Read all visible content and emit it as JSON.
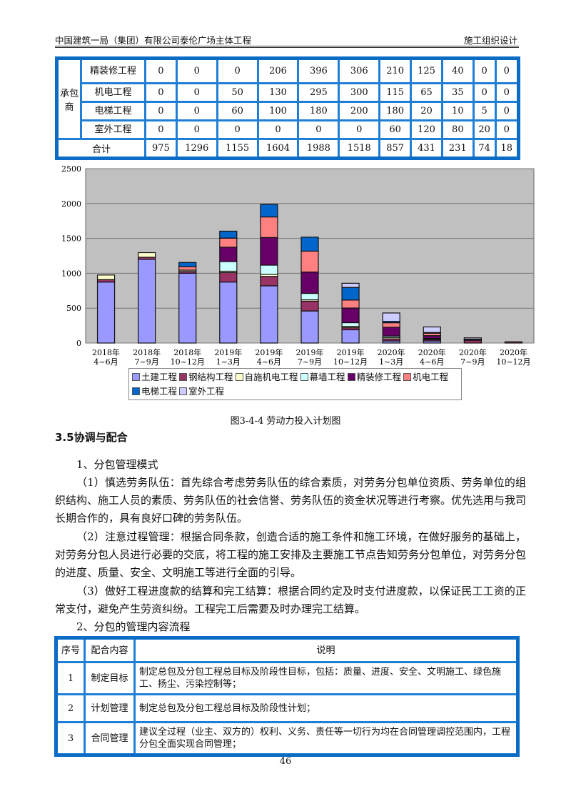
{
  "header": {
    "left": "中国建筑一局（集团）有限公司泰伦广场主体工程",
    "right": "施工组织设计"
  },
  "table1": {
    "group_label": "承包商",
    "rows": [
      {
        "label": "精装修工程",
        "values": [
          "0",
          "0",
          "0",
          "206",
          "396",
          "306",
          "210",
          "125",
          "40",
          "0",
          "0"
        ]
      },
      {
        "label": "机电工程",
        "values": [
          "0",
          "0",
          "50",
          "130",
          "295",
          "300",
          "115",
          "65",
          "35",
          "0",
          "0"
        ]
      },
      {
        "label": "电梯工程",
        "values": [
          "0",
          "0",
          "60",
          "100",
          "180",
          "200",
          "180",
          "20",
          "10",
          "5",
          "0"
        ]
      },
      {
        "label": "室外工程",
        "values": [
          "0",
          "0",
          "0",
          "0",
          "0",
          "0",
          "60",
          "120",
          "80",
          "20",
          "0"
        ]
      }
    ],
    "total_label": "合计",
    "totals": [
      "975",
      "1296",
      "1155",
      "1604",
      "1988",
      "1518",
      "857",
      "431",
      "231",
      "74",
      "18"
    ]
  },
  "chart_data": {
    "type": "bar",
    "stacked": true,
    "ylim": [
      0,
      2500
    ],
    "yticks": [
      0,
      500,
      1000,
      1500,
      2000,
      2500
    ],
    "grid": true,
    "legend": "bottom",
    "background": "#c0c0c0",
    "categories": [
      [
        "2018年",
        "4~6月"
      ],
      [
        "2018年",
        "7~9月"
      ],
      [
        "2018年",
        "10~12月"
      ],
      [
        "2019年",
        "1~3月"
      ],
      [
        "2019年",
        "4~6月"
      ],
      [
        "2019年",
        "7~9月"
      ],
      [
        "2019年",
        "10~12月"
      ],
      [
        "2020年",
        "1~3月"
      ],
      [
        "2020年",
        "4~6月"
      ],
      [
        "2020年",
        "7~9月"
      ],
      [
        "2020年",
        "10~12月"
      ]
    ],
    "series": [
      {
        "name": "土建工程",
        "color": "#9999ff",
        "values": [
          875,
          1200,
          1000,
          875,
          820,
          460,
          190,
          30,
          30,
          0,
          0
        ]
      },
      {
        "name": "钢结构工程",
        "color": "#993366",
        "values": [
          35,
          30,
          25,
          135,
          135,
          140,
          30,
          30,
          20,
          40,
          18
        ]
      },
      {
        "name": "自施机电工程",
        "color": "#ffffcc",
        "values": [
          65,
          66,
          20,
          20,
          30,
          20,
          20,
          20,
          10,
          9,
          0
        ]
      },
      {
        "name": "幕墙工程",
        "color": "#ccffff",
        "values": [
          0,
          0,
          0,
          138,
          132,
          92,
          52,
          21,
          6,
          0,
          0
        ]
      },
      {
        "name": "精装修工程",
        "color": "#660066",
        "values": [
          0,
          0,
          0,
          206,
          396,
          306,
          210,
          125,
          40,
          0,
          0
        ]
      },
      {
        "name": "机电工程",
        "color": "#ff8080",
        "values": [
          0,
          0,
          50,
          130,
          295,
          300,
          115,
          65,
          35,
          0,
          0
        ]
      },
      {
        "name": "电梯工程",
        "color": "#0066cc",
        "values": [
          0,
          0,
          60,
          100,
          180,
          200,
          180,
          20,
          10,
          5,
          0
        ]
      },
      {
        "name": "室外工程",
        "color": "#ccccff",
        "values": [
          0,
          0,
          0,
          0,
          0,
          0,
          60,
          120,
          80,
          20,
          0
        ]
      }
    ]
  },
  "caption": "图3-4-4 劳动力投入计划图",
  "section": {
    "heading": "3.5协调与配合",
    "paragraphs": [
      "1、分包管理模式",
      "（1）慎选劳务队伍：首先综合考虑劳务队伍的综合素质，对劳务分包单位资质、劳务单位的组织结构、施工人员的素质、劳务队伍的社会信誉、劳务队伍的资金状况等进行考察。优先选用与我司长期合作的，具有良好口碑的劳务队伍。",
      "（2）注意过程管理：根据合同条款，创造合适的施工条件和施工环境，在做好服务的基础上，对劳务分包人员进行必要的交底，将工程的施工安排及主要施工节点告知劳务分包单位，对劳务分包的进度、质量、安全、文明施工等进行全面的引导。",
      "（3）做好工程进度款的结算和完工结算：根据合同约定及时支付进度款，以保证民工工资的正常支付，避免产生劳资纠纷。工程完工后需要及时办理完工结算。",
      "2、分包的管理内容流程"
    ]
  },
  "table2": {
    "headers": [
      "序号",
      "配合内容",
      "说明"
    ],
    "rows": [
      [
        "1",
        "制定目标",
        "制定总包及分包工程总目标及阶段性目标，包括：质量、进度、安全、文明施工、绿色施工、扬尘、污染控制等；"
      ],
      [
        "2",
        "计划管理",
        "制定总包及分包工程总目标及阶段性计划；"
      ],
      [
        "3",
        "合同管理",
        "建议全过程（业主、双方的）权利、义务、责任等一切行为均在合同管理调控范围内，工程分包全面实现合同管理；"
      ]
    ]
  },
  "page_number": "46"
}
